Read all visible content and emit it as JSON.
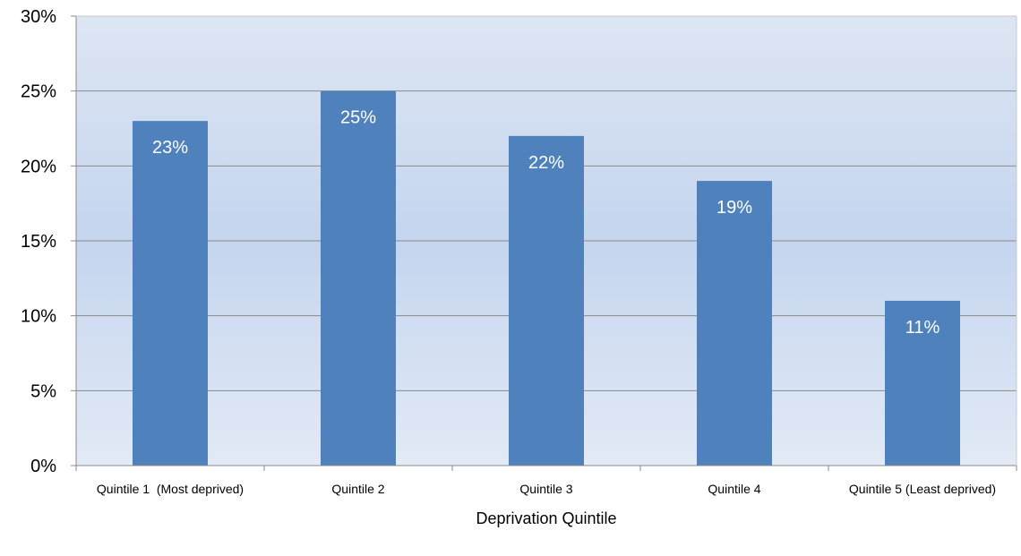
{
  "chart_data": {
    "type": "bar",
    "title": "",
    "xlabel": "Deprivation Quintile",
    "ylabel": "",
    "categories": [
      "Quintile 1  (Most deprived)",
      "Quintile 2",
      "Quintile 3",
      "Quintile 4",
      "Quintile 5 (Least deprived)"
    ],
    "values": [
      23,
      25,
      22,
      19,
      11
    ],
    "data_labels": [
      "23%",
      "25%",
      "22%",
      "19%",
      "11%"
    ],
    "y_ticks": [
      0,
      5,
      10,
      15,
      20,
      25,
      30
    ],
    "y_tick_labels": [
      "0%",
      "5%",
      "10%",
      "15%",
      "20%",
      "25%",
      "30%"
    ],
    "ylim": [
      0,
      30
    ],
    "grid": true,
    "legend": "none"
  },
  "colors": {
    "bar": "#4f81bd",
    "plot_bg_top": "#dde6f3",
    "plot_bg_mid": "#c5d5ef",
    "plot_bg_bottom": "#e2eaf6",
    "gridline": "#8a8a8a",
    "axis": "#8a8a8a",
    "data_label": "#ffffff"
  }
}
